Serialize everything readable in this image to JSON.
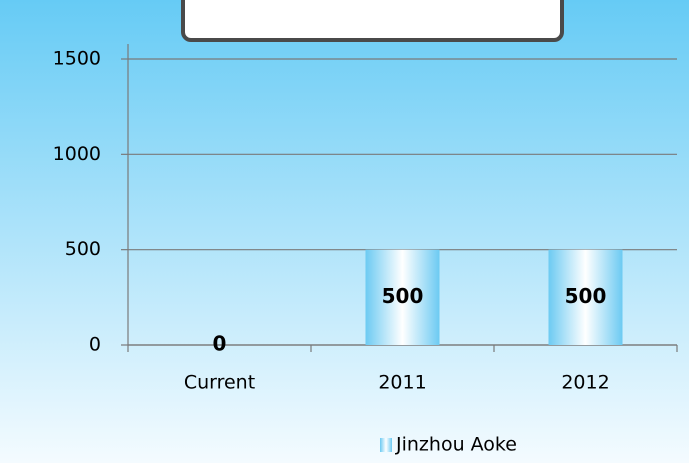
{
  "chart_data": {
    "type": "bar",
    "categories": [
      "Current",
      "2011",
      "2012"
    ],
    "series": [
      {
        "name": "Jinzhou Aoke",
        "color": "#6ccaf2",
        "values": [
          0,
          500,
          500
        ]
      }
    ],
    "ylim": [
      0,
      1500
    ],
    "yticks": [
      0,
      500,
      1000,
      1500
    ],
    "grid": true,
    "legend": "bottom"
  }
}
